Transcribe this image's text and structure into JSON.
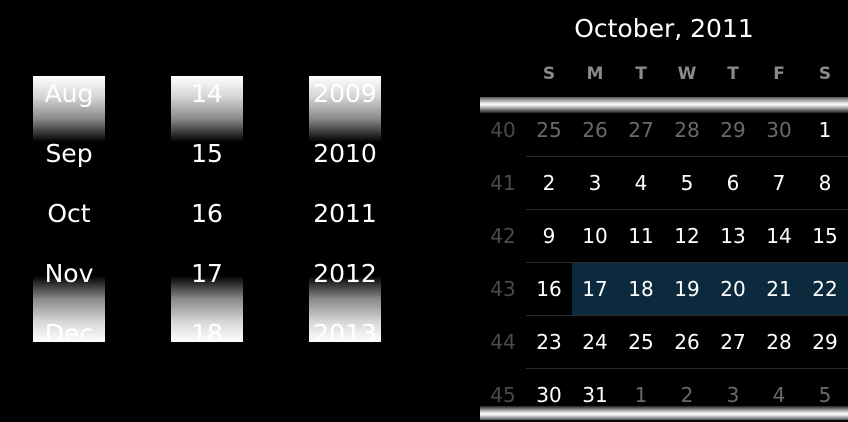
{
  "spinners": {
    "month": [
      "Aug",
      "Sep",
      "Oct",
      "Nov",
      "Dec"
    ],
    "day": [
      "14",
      "15",
      "16",
      "17",
      "18"
    ],
    "year": [
      "2009",
      "2010",
      "2011",
      "2012",
      "2013"
    ]
  },
  "calendar": {
    "title": "October, 2011",
    "weekdays": [
      "S",
      "M",
      "T",
      "W",
      "T",
      "F",
      "S"
    ],
    "weeks": [
      {
        "num": "40",
        "days": [
          "25",
          "26",
          "27",
          "28",
          "29",
          "30",
          "1"
        ],
        "muted": [
          true,
          true,
          true,
          true,
          true,
          true,
          false
        ],
        "selected": [
          false,
          false,
          false,
          false,
          false,
          false,
          false
        ]
      },
      {
        "num": "41",
        "days": [
          "2",
          "3",
          "4",
          "5",
          "6",
          "7",
          "8"
        ],
        "muted": [
          false,
          false,
          false,
          false,
          false,
          false,
          false
        ],
        "selected": [
          false,
          false,
          false,
          false,
          false,
          false,
          false
        ]
      },
      {
        "num": "42",
        "days": [
          "9",
          "10",
          "11",
          "12",
          "13",
          "14",
          "15"
        ],
        "muted": [
          false,
          false,
          false,
          false,
          false,
          false,
          false
        ],
        "selected": [
          false,
          false,
          false,
          false,
          false,
          false,
          false
        ]
      },
      {
        "num": "43",
        "days": [
          "16",
          "17",
          "18",
          "19",
          "20",
          "21",
          "22"
        ],
        "muted": [
          false,
          false,
          false,
          false,
          false,
          false,
          false
        ],
        "selected": [
          false,
          true,
          true,
          true,
          true,
          true,
          true
        ]
      },
      {
        "num": "44",
        "days": [
          "23",
          "24",
          "25",
          "26",
          "27",
          "28",
          "29"
        ],
        "muted": [
          false,
          false,
          false,
          false,
          false,
          false,
          false
        ],
        "selected": [
          false,
          false,
          false,
          false,
          false,
          false,
          false
        ]
      },
      {
        "num": "45",
        "days": [
          "30",
          "31",
          "1",
          "2",
          "3",
          "4",
          "5"
        ],
        "muted": [
          false,
          false,
          true,
          true,
          true,
          true,
          true
        ],
        "selected": [
          false,
          false,
          false,
          false,
          false,
          false,
          false
        ]
      }
    ],
    "colors": {
      "selected_week": "#0b2a3e",
      "muted_text": "#6a6a6a",
      "week_number": "#4a4a4a"
    }
  }
}
